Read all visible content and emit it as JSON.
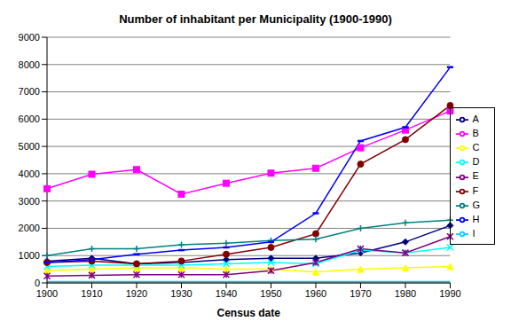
{
  "chart_data": {
    "type": "line",
    "title": "Number of inhabitant per Municipality (1900-1990)",
    "x_label": "Census date",
    "categories": [
      "1900",
      "1910",
      "1920",
      "1930",
      "1940",
      "1950",
      "1960",
      "1970",
      "1980",
      "1990"
    ],
    "series": [
      {
        "name": "A",
        "color": "#000080",
        "marker": "diamond",
        "values": [
          800,
          900,
          700,
          750,
          850,
          900,
          900,
          1100,
          1500,
          2100
        ]
      },
      {
        "name": "B",
        "color": "#FF00FF",
        "marker": "square",
        "values": [
          3450,
          3980,
          4150,
          3250,
          3650,
          4020,
          4200,
          4950,
          5600,
          6300
        ]
      },
      {
        "name": "C",
        "color": "#FFFF00",
        "marker": "triangle",
        "values": [
          450,
          500,
          550,
          550,
          500,
          500,
          400,
          500,
          550,
          600
        ]
      },
      {
        "name": "D",
        "color": "#00FFFF",
        "marker": "x",
        "values": [
          600,
          650,
          650,
          650,
          700,
          750,
          700,
          1200,
          1100,
          1300
        ]
      },
      {
        "name": "E",
        "color": "#800080",
        "marker": "star",
        "values": [
          250,
          280,
          300,
          300,
          300,
          450,
          750,
          1250,
          1100,
          1700
        ]
      },
      {
        "name": "F",
        "color": "#800000",
        "marker": "circle",
        "values": [
          750,
          800,
          700,
          800,
          1050,
          1300,
          1800,
          4350,
          5250,
          6500
        ]
      },
      {
        "name": "G",
        "color": "#008080",
        "marker": "plus",
        "values": [
          1000,
          1250,
          1250,
          1400,
          1450,
          1550,
          1600,
          2000,
          2200,
          2300
        ]
      },
      {
        "name": "H",
        "color": "#0000FF",
        "marker": "dash",
        "values": [
          750,
          850,
          1050,
          1200,
          1300,
          1500,
          2550,
          5200,
          5700,
          7900
        ]
      },
      {
        "name": "I",
        "color": "#00CCFF",
        "marker": "none",
        "values": [
          50,
          50,
          50,
          50,
          50,
          50,
          50,
          50,
          50,
          50
        ]
      }
    ],
    "ylim": [
      0,
      9000
    ],
    "yticks": [
      0,
      1000,
      2000,
      3000,
      4000,
      5000,
      6000,
      7000,
      8000,
      9000
    ],
    "grid": true,
    "legend": "right"
  }
}
